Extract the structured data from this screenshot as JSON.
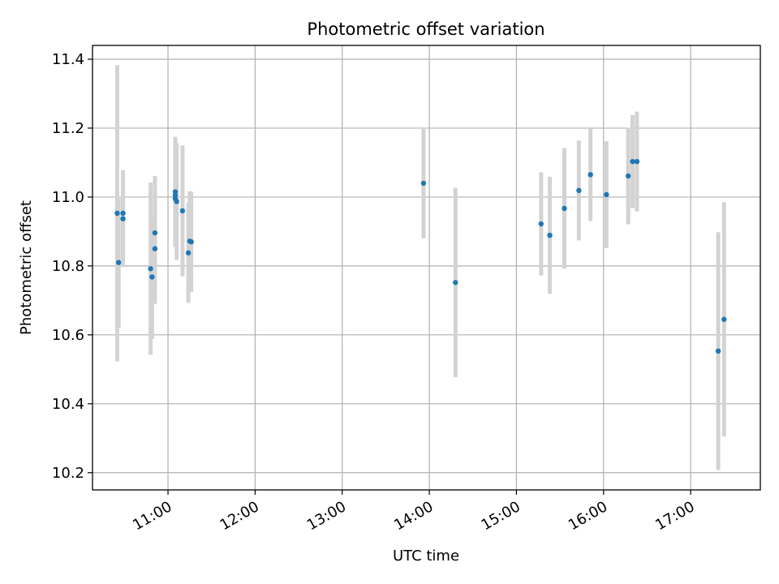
{
  "chart_data": {
    "type": "scatter",
    "title": "Photometric offset variation",
    "xlabel": "UTC time",
    "ylabel": "Photometric offset",
    "x_unit": "hours UTC",
    "xlim": [
      "10:08",
      "17:48"
    ],
    "ylim": [
      10.15,
      11.44
    ],
    "xticks": [
      "11:00",
      "12:00",
      "13:00",
      "14:00",
      "15:00",
      "16:00",
      "17:00"
    ],
    "yticks": [
      "10.2",
      "10.4",
      "10.6",
      "10.8",
      "11.0",
      "11.2",
      "11.4"
    ],
    "grid": true,
    "legend": "none",
    "marker_color": "#1f77b4",
    "errorbar_color": "#d3d3d3",
    "points": [
      {
        "t": "10:25",
        "y": 10.953,
        "err": 0.43
      },
      {
        "t": "10:26",
        "y": 10.81,
        "err": 0.19
      },
      {
        "t": "10:29",
        "y": 10.953,
        "err": 0.125
      },
      {
        "t": "10:29",
        "y": 10.937,
        "err": 0.14
      },
      {
        "t": "10:48",
        "y": 10.792,
        "err": 0.25
      },
      {
        "t": "10:49",
        "y": 10.768,
        "err": 0.18
      },
      {
        "t": "10:51",
        "y": 10.896,
        "err": 0.165
      },
      {
        "t": "10:51",
        "y": 10.85,
        "err": 0.16
      },
      {
        "t": "11:05",
        "y": 11.015,
        "err": 0.16
      },
      {
        "t": "11:05",
        "y": 11.005,
        "err": 0.14
      },
      {
        "t": "11:05",
        "y": 10.995,
        "err": 0.14
      },
      {
        "t": "11:06",
        "y": 10.987,
        "err": 0.17
      },
      {
        "t": "11:10",
        "y": 10.96,
        "err": 0.19
      },
      {
        "t": "11:14",
        "y": 10.838,
        "err": 0.145
      },
      {
        "t": "11:15",
        "y": 10.872,
        "err": 0.145
      },
      {
        "t": "11:16",
        "y": 10.87,
        "err": 0.145
      },
      {
        "t": "13:56",
        "y": 11.04,
        "err": 0.16
      },
      {
        "t": "14:18",
        "y": 10.752,
        "err": 0.275
      },
      {
        "t": "15:17",
        "y": 10.922,
        "err": 0.15
      },
      {
        "t": "15:23",
        "y": 10.889,
        "err": 0.17
      },
      {
        "t": "15:33",
        "y": 10.967,
        "err": 0.175
      },
      {
        "t": "15:43",
        "y": 11.019,
        "err": 0.145
      },
      {
        "t": "15:51",
        "y": 11.065,
        "err": 0.135
      },
      {
        "t": "16:02",
        "y": 11.007,
        "err": 0.155
      },
      {
        "t": "16:17",
        "y": 11.061,
        "err": 0.14
      },
      {
        "t": "16:20",
        "y": 11.103,
        "err": 0.135
      },
      {
        "t": "16:23",
        "y": 11.103,
        "err": 0.145
      },
      {
        "t": "17:19",
        "y": 10.553,
        "err": 0.345
      },
      {
        "t": "17:23",
        "y": 10.645,
        "err": 0.34
      }
    ]
  }
}
